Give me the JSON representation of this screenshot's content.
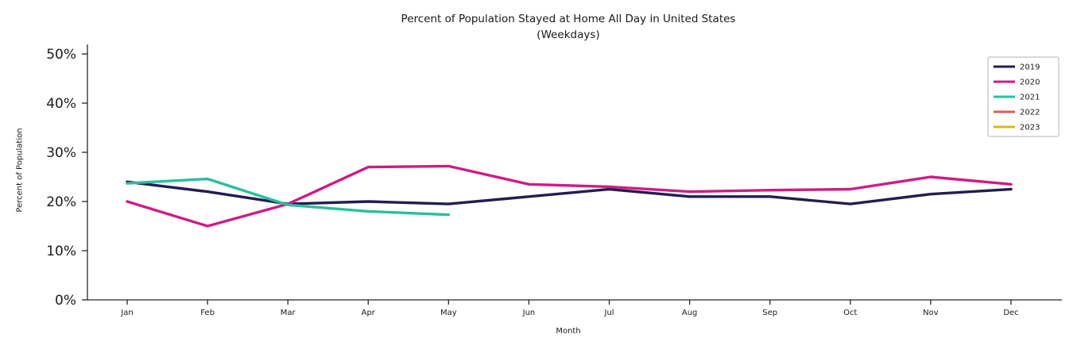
{
  "chart_data": {
    "type": "line",
    "title": "Percent of Population Stayed at Home All Day in United States",
    "subtitle": "(Weekdays)",
    "xlabel": "Month",
    "ylabel": "Percent of Population",
    "categories": [
      "Jan",
      "Feb",
      "Mar",
      "Apr",
      "May",
      "Jun",
      "Jul",
      "Aug",
      "Sep",
      "Oct",
      "Nov",
      "Dec"
    ],
    "ylim": [
      0,
      50
    ],
    "yticks": [
      0,
      10,
      20,
      30,
      40,
      50
    ],
    "ytick_labels": [
      "0%",
      "10%",
      "20%",
      "30%",
      "40%",
      "50%"
    ],
    "grid": false,
    "legend_position": "upper right",
    "series": [
      {
        "name": "2019",
        "color": "#211e4f",
        "values": [
          24,
          22,
          19.5,
          20,
          19.5,
          21,
          22.5,
          21,
          21,
          19.5,
          21.5,
          22.5
        ]
      },
      {
        "name": "2020",
        "color": "#d01c82",
        "values": [
          20,
          15,
          19.5,
          27,
          27.2,
          23.5,
          23,
          22,
          22.3,
          22.5,
          25,
          23.5
        ]
      },
      {
        "name": "2021",
        "color": "#28bf9c",
        "values": [
          23.7,
          24.6,
          19.3,
          18,
          17.3,
          null,
          null,
          null,
          null,
          null,
          null,
          null
        ]
      },
      {
        "name": "2022",
        "color": "#d96152",
        "values": []
      },
      {
        "name": "2023",
        "color": "#e2b310",
        "values": []
      }
    ]
  }
}
